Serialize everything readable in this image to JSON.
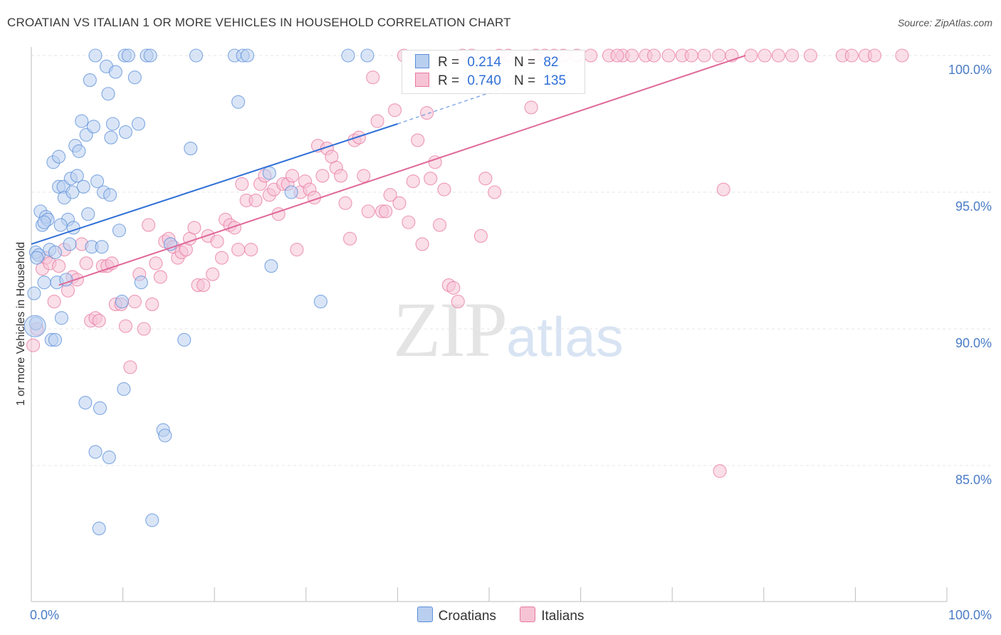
{
  "title": "CROATIAN VS ITALIAN 1 OR MORE VEHICLES IN HOUSEHOLD CORRELATION CHART",
  "source": "Source: ZipAtlas.com",
  "watermark": {
    "zip": "ZIP",
    "atlas": "atlas"
  },
  "colors": {
    "blue": "#5b8fd8",
    "blue_fill": "#b9cff0",
    "pink": "#e87aa0",
    "pink_fill": "#f6c3d5",
    "blue_line": "#2f6fd6",
    "pink_line": "#e0689a"
  },
  "legend": {
    "rows": [
      {
        "r_label": "R =",
        "r_value": "0.214",
        "n_label": "N =",
        "n_value": "82"
      },
      {
        "r_label": "R =",
        "r_value": "0.740",
        "n_label": "N =",
        "n_value": "135"
      }
    ],
    "series_names": [
      "Croatians",
      "Italians"
    ]
  },
  "chart_data": {
    "type": "scatter",
    "xlabel": "",
    "ylabel": "1 or more Vehicles in Household",
    "xlim": [
      0,
      100
    ],
    "ylim": [
      80.5,
      100.8
    ],
    "x_ticks": [
      "0.0%",
      "100.0%"
    ],
    "y_ticks": [
      {
        "label": "100.0%",
        "value": 100
      },
      {
        "label": "95.0%",
        "value": 95
      },
      {
        "label": "90.0%",
        "value": 90
      },
      {
        "label": "85.0%",
        "value": 85
      }
    ],
    "series": [
      {
        "name": "Croatians",
        "trend": {
          "x": [
            0,
            40
          ],
          "y": [
            93.1,
            97.5
          ],
          "dashed_to": [
            55,
            99.2
          ]
        },
        "points": [
          [
            0.3,
            91.3
          ],
          [
            0.5,
            90.2
          ],
          [
            0.5,
            92.8
          ],
          [
            0.8,
            92.7
          ],
          [
            1.0,
            94.3
          ],
          [
            1.2,
            93.8
          ],
          [
            1.4,
            91.7
          ],
          [
            1.6,
            94.1
          ],
          [
            1.8,
            94.0
          ],
          [
            2.0,
            92.9
          ],
          [
            2.2,
            89.6
          ],
          [
            2.4,
            96.1
          ],
          [
            2.6,
            92.8
          ],
          [
            2.8,
            91.7
          ],
          [
            3.0,
            96.3
          ],
          [
            3.0,
            95.2
          ],
          [
            3.3,
            90.4
          ],
          [
            3.5,
            95.2
          ],
          [
            3.6,
            94.8
          ],
          [
            3.8,
            91.8
          ],
          [
            4.0,
            94.0
          ],
          [
            4.2,
            93.1
          ],
          [
            4.3,
            95.5
          ],
          [
            4.5,
            95.0
          ],
          [
            4.6,
            93.7
          ],
          [
            4.8,
            96.7
          ],
          [
            5.0,
            95.6
          ],
          [
            5.2,
            96.5
          ],
          [
            5.5,
            97.6
          ],
          [
            5.7,
            95.2
          ],
          [
            6.0,
            97.1
          ],
          [
            6.2,
            94.2
          ],
          [
            6.4,
            99.1
          ],
          [
            6.6,
            93.0
          ],
          [
            6.8,
            97.4
          ],
          [
            7.0,
            85.5
          ],
          [
            7.0,
            100
          ],
          [
            7.2,
            95.4
          ],
          [
            7.5,
            87.1
          ],
          [
            7.7,
            93.0
          ],
          [
            7.9,
            95.0
          ],
          [
            8.2,
            99.6
          ],
          [
            8.4,
            98.6
          ],
          [
            8.6,
            94.9
          ],
          [
            8.7,
            97.0
          ],
          [
            8.9,
            97.5
          ],
          [
            9.2,
            99.4
          ],
          [
            9.6,
            93.6
          ],
          [
            9.9,
            91.0
          ],
          [
            10.1,
            87.8
          ],
          [
            10.2,
            100
          ],
          [
            10.3,
            97.2
          ],
          [
            10.6,
            100
          ],
          [
            11.3,
            99.2
          ],
          [
            11.7,
            97.5
          ],
          [
            12.0,
            91.7
          ],
          [
            12.6,
            100
          ],
          [
            13.0,
            100
          ],
          [
            13.2,
            83.0
          ],
          [
            14.4,
            86.3
          ],
          [
            14.6,
            86.1
          ],
          [
            15.2,
            93.1
          ],
          [
            16.7,
            89.6
          ],
          [
            17.4,
            96.6
          ],
          [
            18.0,
            100
          ],
          [
            22.2,
            100
          ],
          [
            22.6,
            98.3
          ],
          [
            23.1,
            100
          ],
          [
            23.6,
            100
          ],
          [
            26.0,
            95.7
          ],
          [
            26.2,
            92.3
          ],
          [
            28.4,
            95.0
          ],
          [
            31.6,
            91.0
          ],
          [
            34.6,
            100
          ],
          [
            36.7,
            100
          ],
          [
            8.5,
            85.3
          ],
          [
            5.9,
            87.3
          ],
          [
            7.4,
            82.7
          ],
          [
            2.6,
            89.6
          ],
          [
            1.4,
            93.9
          ],
          [
            0.6,
            92.6
          ],
          [
            3.2,
            93.8
          ]
        ]
      },
      {
        "name": "Italians",
        "trend": {
          "x": [
            3,
            78
          ],
          "y": [
            91.6,
            100
          ]
        },
        "points": [
          [
            0.2,
            89.4
          ],
          [
            0.6,
            90.0
          ],
          [
            1.2,
            92.2
          ],
          [
            1.6,
            92.6
          ],
          [
            2.0,
            92.4
          ],
          [
            2.5,
            91.0
          ],
          [
            3.0,
            92.3
          ],
          [
            3.6,
            92.9
          ],
          [
            4.0,
            91.4
          ],
          [
            4.5,
            91.9
          ],
          [
            5.0,
            91.8
          ],
          [
            5.5,
            93.1
          ],
          [
            6.0,
            92.4
          ],
          [
            6.5,
            90.3
          ],
          [
            7.0,
            90.4
          ],
          [
            7.4,
            90.3
          ],
          [
            7.8,
            92.3
          ],
          [
            8.3,
            92.3
          ],
          [
            8.8,
            92.4
          ],
          [
            9.2,
            90.9
          ],
          [
            9.8,
            90.9
          ],
          [
            10.3,
            90.1
          ],
          [
            10.8,
            88.6
          ],
          [
            11.3,
            91.0
          ],
          [
            11.8,
            92.0
          ],
          [
            12.3,
            90.0
          ],
          [
            12.8,
            93.8
          ],
          [
            13.2,
            90.9
          ],
          [
            13.6,
            92.4
          ],
          [
            14.1,
            91.9
          ],
          [
            14.6,
            93.2
          ],
          [
            15.0,
            93.3
          ],
          [
            15.5,
            93.0
          ],
          [
            16.0,
            92.6
          ],
          [
            16.4,
            92.8
          ],
          [
            16.9,
            92.9
          ],
          [
            17.3,
            93.3
          ],
          [
            17.8,
            93.7
          ],
          [
            18.2,
            91.6
          ],
          [
            18.8,
            91.6
          ],
          [
            19.3,
            93.4
          ],
          [
            19.8,
            92.0
          ],
          [
            20.3,
            93.2
          ],
          [
            20.8,
            92.6
          ],
          [
            21.2,
            94.0
          ],
          [
            21.7,
            93.8
          ],
          [
            22.2,
            93.7
          ],
          [
            22.6,
            92.9
          ],
          [
            23.0,
            95.3
          ],
          [
            23.5,
            94.7
          ],
          [
            24.0,
            92.9
          ],
          [
            24.5,
            94.7
          ],
          [
            25.0,
            95.3
          ],
          [
            25.5,
            95.6
          ],
          [
            26.0,
            94.9
          ],
          [
            26.5,
            95.1
          ],
          [
            27.0,
            94.2
          ],
          [
            27.5,
            95.3
          ],
          [
            28.0,
            95.3
          ],
          [
            28.5,
            95.6
          ],
          [
            29.0,
            92.9
          ],
          [
            29.4,
            95.0
          ],
          [
            29.9,
            95.4
          ],
          [
            30.4,
            95.1
          ],
          [
            30.9,
            94.8
          ],
          [
            31.3,
            96.7
          ],
          [
            31.8,
            95.6
          ],
          [
            32.3,
            96.6
          ],
          [
            32.8,
            96.3
          ],
          [
            33.3,
            95.9
          ],
          [
            33.8,
            95.6
          ],
          [
            34.3,
            94.6
          ],
          [
            34.8,
            93.3
          ],
          [
            35.3,
            96.9
          ],
          [
            35.8,
            97.0
          ],
          [
            36.3,
            95.6
          ],
          [
            36.8,
            94.3
          ],
          [
            37.3,
            99.2
          ],
          [
            37.8,
            97.6
          ],
          [
            38.3,
            94.3
          ],
          [
            38.7,
            94.3
          ],
          [
            39.2,
            94.9
          ],
          [
            39.7,
            98.0
          ],
          [
            40.2,
            94.6
          ],
          [
            40.7,
            100
          ],
          [
            41.2,
            93.9
          ],
          [
            41.7,
            95.4
          ],
          [
            42.2,
            96.9
          ],
          [
            42.7,
            93.1
          ],
          [
            43.2,
            97.9
          ],
          [
            43.6,
            95.5
          ],
          [
            44.1,
            96.1
          ],
          [
            44.6,
            93.8
          ],
          [
            45.1,
            95.1
          ],
          [
            45.6,
            91.6
          ],
          [
            46.1,
            91.5
          ],
          [
            46.6,
            91.0
          ],
          [
            47.1,
            100
          ],
          [
            48.1,
            100
          ],
          [
            49.1,
            93.4
          ],
          [
            49.6,
            95.5
          ],
          [
            50.6,
            95.0
          ],
          [
            51.1,
            100
          ],
          [
            52.1,
            100
          ],
          [
            54.6,
            98.1
          ],
          [
            55.1,
            100
          ],
          [
            56.1,
            100
          ],
          [
            57.1,
            100
          ],
          [
            58.1,
            100
          ],
          [
            59.6,
            100
          ],
          [
            61.1,
            100
          ],
          [
            63.1,
            100
          ],
          [
            64.6,
            100
          ],
          [
            65.6,
            100
          ],
          [
            67.1,
            100
          ],
          [
            69.6,
            100
          ],
          [
            71.1,
            100
          ],
          [
            72.1,
            100
          ],
          [
            75.1,
            100
          ],
          [
            75.6,
            95.1
          ],
          [
            75.2,
            84.8
          ],
          [
            78.6,
            100
          ],
          [
            80.1,
            100
          ],
          [
            81.6,
            100
          ],
          [
            83.1,
            100
          ],
          [
            85.1,
            100
          ],
          [
            88.6,
            100
          ],
          [
            89.6,
            100
          ],
          [
            91.1,
            100
          ],
          [
            92.1,
            100
          ],
          [
            95.1,
            100
          ],
          [
            64.0,
            100
          ],
          [
            68.0,
            100
          ],
          [
            73.5,
            100
          ],
          [
            76.5,
            100
          ]
        ]
      }
    ]
  }
}
